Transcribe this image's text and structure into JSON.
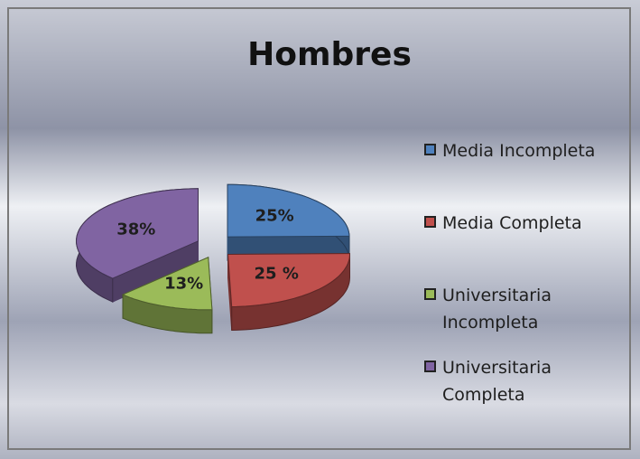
{
  "chart_data": {
    "type": "pie3d",
    "title": "Hombres",
    "categories": [
      "Media Incompleta",
      "Media Completa",
      "Universitaria Incompleta",
      "Universitaria Completa"
    ],
    "values": [
      25,
      25,
      13,
      38
    ],
    "value_labels": [
      "25%",
      "25 %",
      "13%",
      "38%"
    ],
    "colors": [
      "#4f81bd",
      "#c0504d",
      "#9bbb59",
      "#8064a2"
    ],
    "legend": "right"
  }
}
